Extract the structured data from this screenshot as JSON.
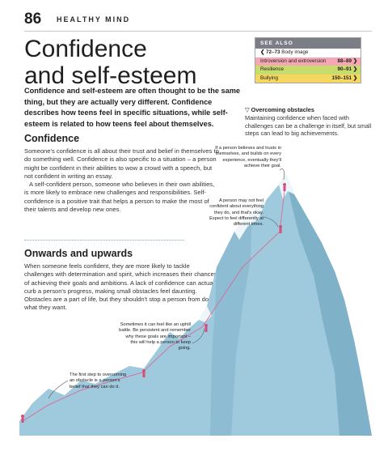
{
  "header": {
    "page_number": "86",
    "running_title": "HEALTHY MIND"
  },
  "title_lines": [
    "Confidence",
    "and self-esteem"
  ],
  "intro": "Confidence and self-esteem are often thought to be the same thing, but they are actually very different. Confidence describes how teens feel in specific situations, while self-esteem is related to how teens feel about themselves.",
  "sections": {
    "confidence": {
      "heading": "Confidence",
      "paragraphs": [
        "Someone's confidence is all about their trust and belief in themselves to do something well. Confidence is also specific to a situation – a person might be confident in their abilities to wow a crowd with a speech, but not confident in writing an essay.",
        "A self-confident person, someone who believes in their own abilities, is more likely to embrace new challenges and responsibilities. Self-confidence is a positive trait that helps a person to make the most of their talents and develop new ones."
      ]
    },
    "onwards": {
      "heading": "Onwards and upwards",
      "paragraphs": [
        "When someone feels confident, they are more likely to tackle challenges with determination and spirit, which increases their chances of achieving their goals and ambitions. A lack of confidence can actually curb a person's progress, making small obstacles feel daunting. Obstacles are a part of life, but they shouldn't stop a person from doing what they want."
      ]
    }
  },
  "see_also": {
    "heading": "SEE ALSO",
    "items": [
      {
        "pages": "72–73",
        "label": "Body image",
        "color": "#ffffff"
      },
      {
        "label": "Introversion and extroversion",
        "pages": "88–89",
        "color": "#f6a7b6"
      },
      {
        "label": "Resilience",
        "pages": "90–91",
        "color": "#c8dc6e"
      },
      {
        "label": "Bullying",
        "pages": "150–151",
        "color": "#f3d75f"
      }
    ]
  },
  "caption": {
    "title": "Overcoming obstacles",
    "text": "Maintaining confidence when faced with challenges can be a challenge in itself, but small steps can lead to big achievements."
  },
  "annotations": [
    "If a person believes and trusts in themselves, and builds on every experience, eventually they'll achieve their goal.",
    "A person may not feel confident about everything they do, and that's okay. Expect to feel differently at different times.",
    "Sometimes it can feel like an uphill battle. Be persistent and remember why these goals are important – this will help a person to keep going.",
    "The first step to overcoming an obstacle is a person's belief that they can do it."
  ],
  "colors": {
    "mountain": "#9fc9dd",
    "mountain_shade": "#7fb1c9",
    "snow": "#eef6fa",
    "rope": "#e0608a"
  }
}
